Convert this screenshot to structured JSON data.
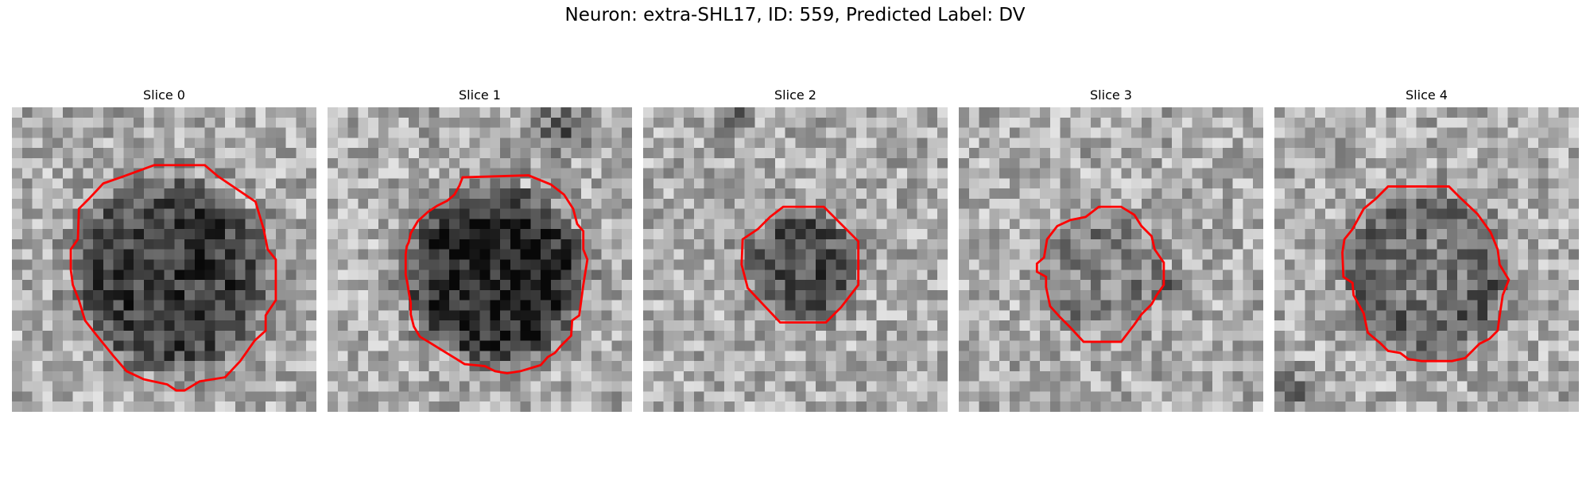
{
  "title": "Neuron: extra-SHL17, ID: 559, Predicted Label: DV",
  "colors": {
    "contour": "#ff0000",
    "background": "#ffffff"
  },
  "colormap": "gray",
  "panels": [
    {
      "label": "Slice 0"
    },
    {
      "label": "Slice 1"
    },
    {
      "label": "Slice 2"
    },
    {
      "label": "Slice 3"
    },
    {
      "label": "Slice 4"
    }
  ]
}
